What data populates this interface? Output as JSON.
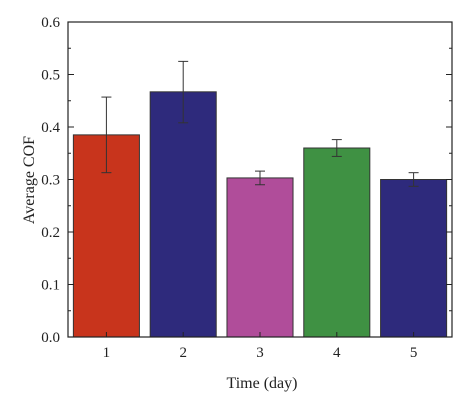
{
  "chart_data": {
    "type": "bar",
    "title": "",
    "xlabel": "Time (day)",
    "ylabel": "Average COF",
    "categories": [
      "1",
      "2",
      "3",
      "4",
      "5"
    ],
    "values": [
      0.385,
      0.467,
      0.303,
      0.36,
      0.3
    ],
    "error_low": [
      0.313,
      0.408,
      0.29,
      0.344,
      0.287
    ],
    "error_high": [
      0.457,
      0.525,
      0.316,
      0.376,
      0.313
    ],
    "bar_colors": [
      "#c8341c",
      "#2e2a7c",
      "#b04d9a",
      "#3f9143",
      "#2e2a7c"
    ],
    "ylim": [
      0.0,
      0.6
    ],
    "yticks": [
      "0.0",
      "0.1",
      "0.2",
      "0.3",
      "0.4",
      "0.5",
      "0.6"
    ],
    "ytick_values": [
      0.0,
      0.1,
      0.2,
      0.3,
      0.4,
      0.5,
      0.6
    ],
    "grid": false,
    "legend": "none"
  }
}
